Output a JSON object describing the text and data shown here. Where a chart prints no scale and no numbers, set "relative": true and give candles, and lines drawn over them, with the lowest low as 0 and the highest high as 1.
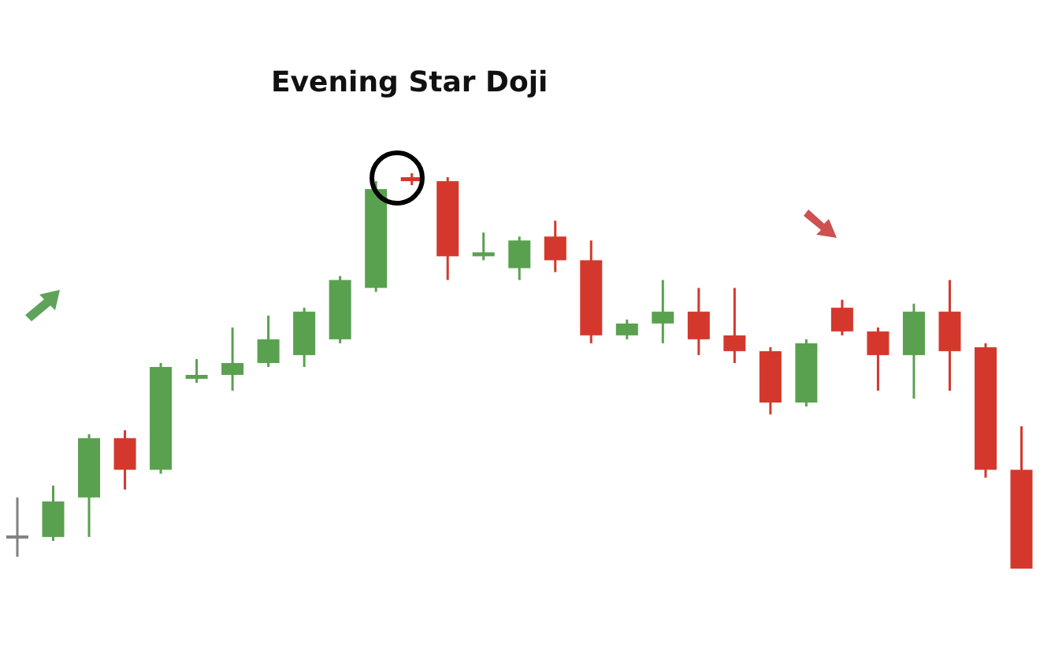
{
  "chart_data": {
    "type": "candlestick",
    "relative": true,
    "tick_labels": false,
    "annotations": [
      "Evening Star Doji"
    ],
    "categories": [
      null,
      null,
      null,
      null,
      null,
      null,
      null,
      null,
      null,
      null,
      null,
      null,
      null,
      null,
      null,
      null,
      null,
      null,
      null,
      null,
      null,
      null,
      null,
      null,
      null,
      null,
      null,
      null,
      null
    ],
    "ohlc": [
      [
        0.08,
        0.18,
        0.03,
        0.08
      ],
      [
        0.08,
        0.21,
        0.07,
        0.17
      ],
      [
        0.18,
        0.34,
        0.08,
        0.33
      ],
      [
        0.33,
        0.35,
        0.2,
        0.25
      ],
      [
        0.25,
        0.52,
        0.24,
        0.51
      ],
      [
        0.48,
        0.53,
        0.47,
        0.49
      ],
      [
        0.49,
        0.61,
        0.45,
        0.52
      ],
      [
        0.52,
        0.64,
        0.51,
        0.58
      ],
      [
        0.54,
        0.66,
        0.51,
        0.65
      ],
      [
        0.58,
        0.74,
        0.57,
        0.73
      ],
      [
        0.71,
        0.98,
        0.7,
        0.96
      ],
      [
        0.99,
        1,
        0.97,
        0.98
      ],
      [
        0.98,
        0.99,
        0.73,
        0.79
      ],
      [
        0.79,
        0.85,
        0.78,
        0.8
      ],
      [
        0.76,
        0.84,
        0.73,
        0.83
      ],
      [
        0.84,
        0.88,
        0.75,
        0.78
      ],
      [
        0.78,
        0.83,
        0.57,
        0.59
      ],
      [
        0.59,
        0.63,
        0.58,
        0.62
      ],
      [
        0.62,
        0.73,
        0.57,
        0.65
      ],
      [
        0.65,
        0.71,
        0.54,
        0.58
      ],
      [
        0.59,
        0.71,
        0.52,
        0.55
      ],
      [
        0.55,
        0.56,
        0.39,
        0.42
      ],
      [
        0.42,
        0.58,
        0.41,
        0.57
      ],
      [
        0.66,
        0.68,
        0.59,
        0.6
      ],
      [
        0.6,
        0.61,
        0.45,
        0.54
      ],
      [
        0.54,
        0.67,
        0.43,
        0.65
      ],
      [
        0.65,
        0.73,
        0.45,
        0.55
      ],
      [
        0.56,
        0.57,
        0.23,
        0.25
      ],
      [
        0.25,
        0.36,
        0,
        0
      ]
    ],
    "colors": [
      "#808080",
      "#59a14f",
      "#59a14f",
      "#d4382c",
      "#59a14f",
      "#59a14f",
      "#59a14f",
      "#59a14f",
      "#59a14f",
      "#59a14f",
      "#59a14f",
      "#d4382c",
      "#d4382c",
      "#59a14f",
      "#59a14f",
      "#d4382c",
      "#d4382c",
      "#59a14f",
      "#59a14f",
      "#d4382c",
      "#d4382c",
      "#d4382c",
      "#59a14f",
      "#d4382c",
      "#d4382c",
      "#59a14f",
      "#d4382c",
      "#d4382c",
      "#d4382c"
    ]
  }
}
